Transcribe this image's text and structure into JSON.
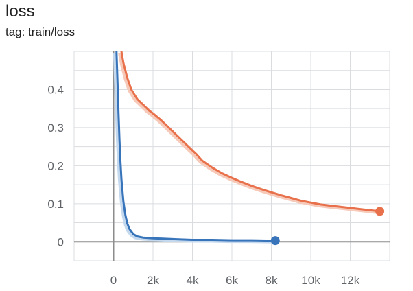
{
  "header": {
    "title": "loss",
    "subtitle": "tag: train/loss"
  },
  "chart_data": {
    "type": "line",
    "title": "loss",
    "subtitle": "tag: train/loss",
    "xlim": [
      -2000,
      14000
    ],
    "ylim": [
      -0.05,
      0.5
    ],
    "x_ticks": [
      0,
      2000,
      4000,
      6000,
      8000,
      10000,
      12000
    ],
    "x_tick_labels": [
      "0",
      "2k",
      "4k",
      "6k",
      "8k",
      "10k",
      "12k"
    ],
    "y_ticks": [
      0,
      0.1,
      0.2,
      0.3,
      0.4
    ],
    "y_tick_labels": [
      "0",
      "0.1",
      "0.2",
      "0.3",
      "0.4"
    ],
    "grid": true,
    "series": [
      {
        "color": "#e8704a",
        "raw_color": "#f6c9b9",
        "x": [
          400,
          500,
          700,
          900,
          1200,
          1500,
          1800,
          2100,
          2400,
          2700,
          3000,
          3300,
          3600,
          3900,
          4200,
          4500,
          5000,
          5500,
          6000,
          6500,
          7000,
          7500,
          8000,
          8500,
          9000,
          9500,
          10000,
          10500,
          11000,
          11500,
          12000,
          12500,
          13000,
          13500
        ],
        "y": [
          0.5,
          0.47,
          0.43,
          0.4,
          0.375,
          0.36,
          0.345,
          0.333,
          0.32,
          0.305,
          0.29,
          0.275,
          0.26,
          0.245,
          0.23,
          0.213,
          0.195,
          0.18,
          0.168,
          0.157,
          0.147,
          0.138,
          0.13,
          0.122,
          0.115,
          0.108,
          0.103,
          0.098,
          0.095,
          0.092,
          0.089,
          0.086,
          0.083,
          0.08
        ],
        "end_marker": true
      },
      {
        "color": "#3874ba",
        "raw_color": "#c5d9ee",
        "x": [
          150,
          200,
          250,
          300,
          350,
          400,
          500,
          600,
          700,
          800,
          1000,
          1200,
          1500,
          2000,
          2500,
          3000,
          4000,
          5000,
          6000,
          7000,
          8000,
          8200
        ],
        "y": [
          0.5,
          0.42,
          0.34,
          0.27,
          0.21,
          0.165,
          0.105,
          0.07,
          0.048,
          0.034,
          0.02,
          0.014,
          0.011,
          0.009,
          0.008,
          0.007,
          0.005,
          0.005,
          0.004,
          0.004,
          0.003,
          0.003
        ],
        "end_marker": true
      }
    ]
  }
}
